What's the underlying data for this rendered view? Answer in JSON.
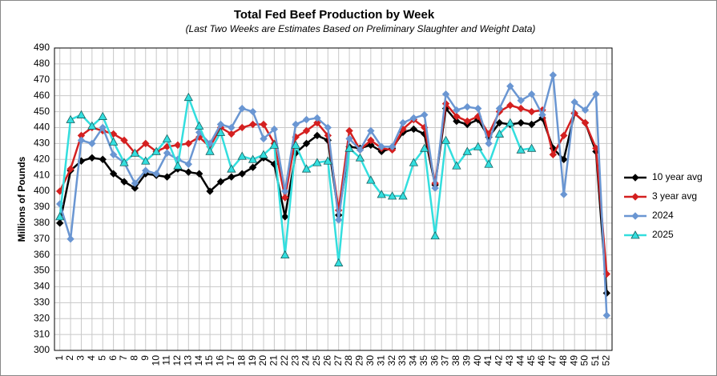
{
  "chart_data": {
    "type": "line",
    "title": "Total Fed Beef Production by Week",
    "subtitle": "(Last Two Weeks are Estimates Based on Preliminary Slaughter and Weight Data)",
    "y_label": "Millions of Pounds",
    "categories": [
      1,
      2,
      3,
      4,
      5,
      6,
      7,
      8,
      9,
      10,
      11,
      12,
      13,
      14,
      15,
      16,
      17,
      18,
      19,
      20,
      21,
      22,
      23,
      24,
      25,
      26,
      27,
      28,
      29,
      30,
      31,
      32,
      33,
      34,
      35,
      36,
      37,
      38,
      39,
      40,
      41,
      42,
      43,
      44,
      45,
      46,
      47,
      48,
      49,
      50,
      51,
      52
    ],
    "ylim": [
      300,
      490
    ],
    "yticks": [
      300,
      310,
      320,
      330,
      340,
      350,
      360,
      370,
      380,
      390,
      400,
      410,
      420,
      430,
      440,
      450,
      460,
      470,
      480,
      490
    ],
    "grid": true,
    "legend": "right",
    "series": [
      {
        "name": "10 year avg",
        "color": "#000000",
        "marker": "diamond",
        "values": [
          380,
          413,
          419,
          421,
          420,
          411,
          406,
          402,
          411,
          410,
          409,
          414,
          412,
          411,
          400,
          406,
          409,
          411,
          415,
          421,
          417,
          384,
          424,
          430,
          435,
          432,
          385,
          428,
          427,
          429,
          425,
          427,
          437,
          439,
          436,
          404,
          452,
          444,
          442,
          445,
          434,
          443,
          442,
          443,
          442,
          446,
          427,
          420,
          449,
          443,
          425,
          336
        ]
      },
      {
        "name": "3 year avg",
        "color": "#d42020",
        "marker": "diamond",
        "values": [
          400,
          414,
          435,
          440,
          438,
          436,
          432,
          424,
          430,
          425,
          428,
          429,
          430,
          434,
          428,
          440,
          436,
          440,
          442,
          442,
          430,
          396,
          434,
          438,
          443,
          435,
          388,
          438,
          426,
          432,
          427,
          426,
          439,
          445,
          440,
          405,
          455,
          447,
          444,
          447,
          436,
          450,
          454,
          452,
          450,
          451,
          423,
          435,
          449,
          443,
          427,
          348
        ]
      },
      {
        "name": "2024",
        "color": "#6a96d2",
        "marker": "diamond",
        "values": [
          392,
          370,
          432,
          430,
          440,
          423,
          418,
          405,
          413,
          411,
          424,
          420,
          417,
          437,
          430,
          442,
          440,
          452,
          450,
          433,
          439,
          400,
          442,
          445,
          446,
          440,
          382,
          433,
          426,
          438,
          428,
          428,
          443,
          446,
          448,
          402,
          461,
          451,
          453,
          452,
          430,
          452,
          466,
          457,
          461,
          448,
          473,
          398,
          456,
          451,
          461,
          322
        ]
      },
      {
        "name": "2025",
        "color": "#33dede",
        "marker": "triangle",
        "values": [
          384,
          445,
          448,
          441,
          447,
          431,
          418,
          424,
          419,
          425,
          433,
          416,
          459,
          441,
          425,
          437,
          414,
          422,
          420,
          423,
          429,
          360,
          429,
          414,
          418,
          419,
          355,
          427,
          421,
          407,
          398,
          397,
          397,
          418,
          427,
          372,
          432,
          416,
          425,
          428,
          417,
          436,
          443,
          426,
          427,
          null,
          null,
          null,
          null,
          null,
          null,
          null
        ]
      }
    ]
  }
}
